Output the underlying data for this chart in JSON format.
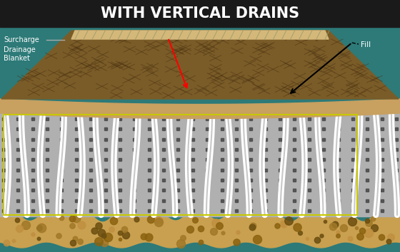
{
  "title": "WITH VERTICAL DRAINS",
  "bg_color": "#2d7a78",
  "title_bg_color": "#1a1a1a",
  "title_color": "#ffffff",
  "surcharge_label": "Surcharge",
  "drainage_label": "Drainage\nBlanket",
  "fill_label": "Fill",
  "fill_top_color": "#d4b87a",
  "fill_body_color": "#7a5c28",
  "drainage_blanket_color": "#c8a060",
  "soil_color": "#b0b0b0",
  "drain_color": "#ffffff",
  "bottom_soil_color": "#c8a050",
  "box_color": "#c8c800",
  "soil_dot_color": "#444444",
  "surcharge_strip_color": "#d4c080"
}
